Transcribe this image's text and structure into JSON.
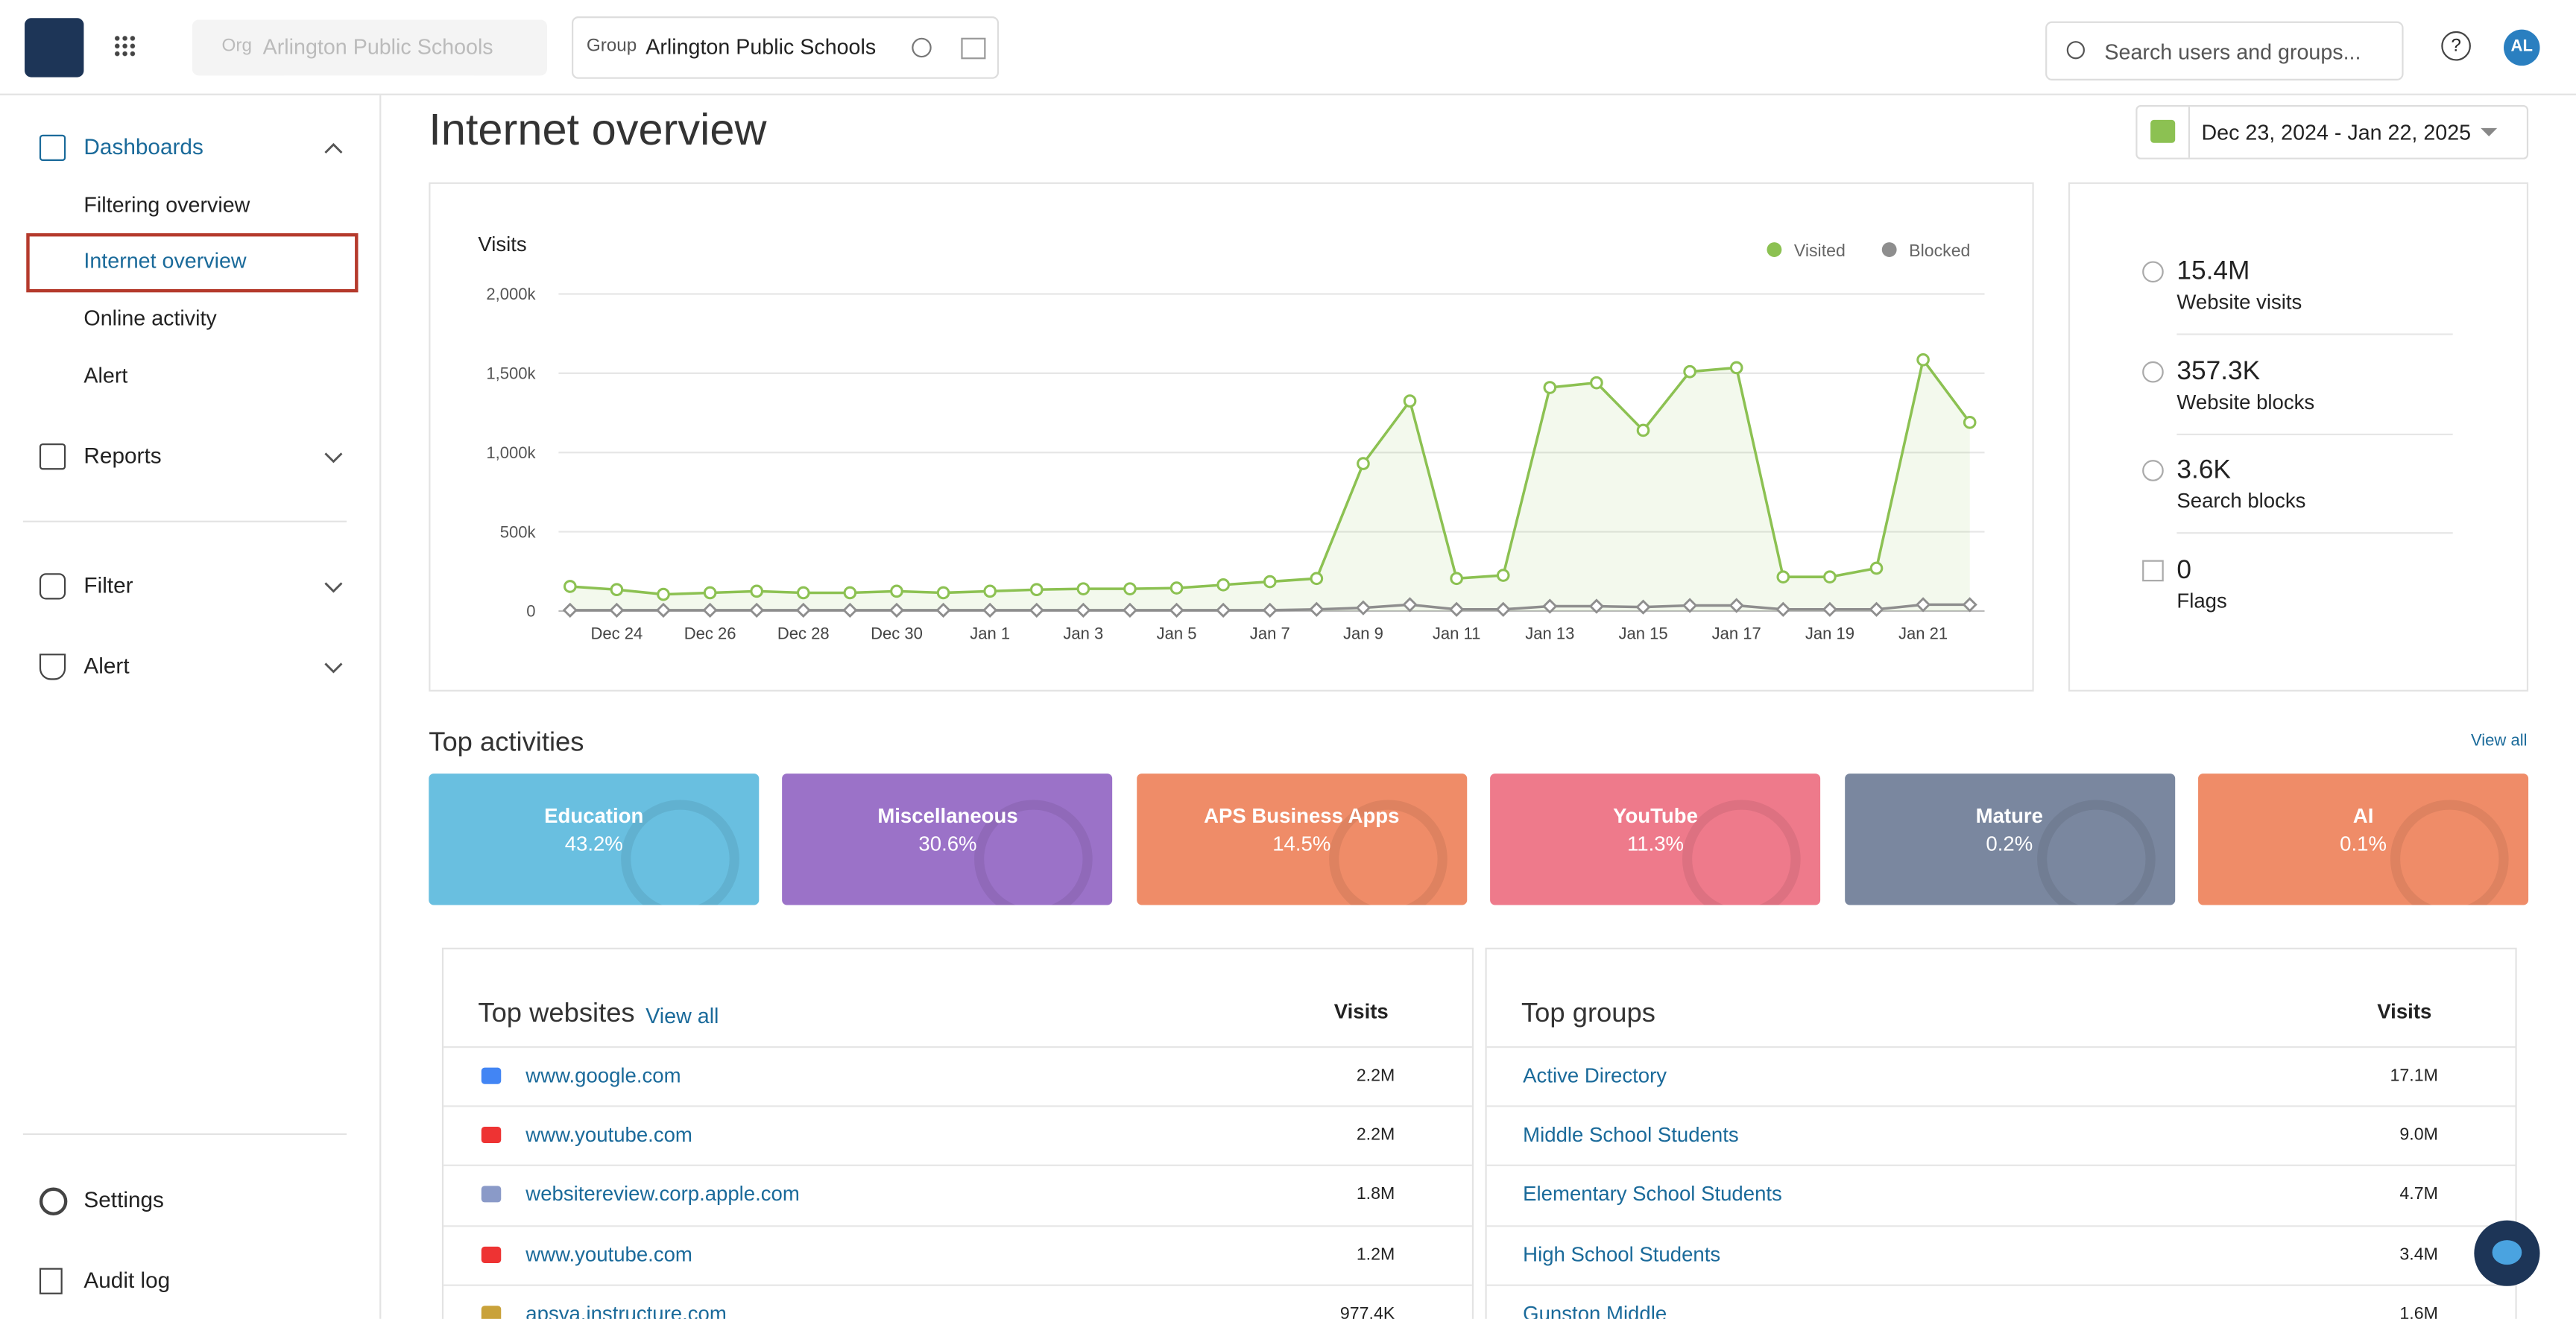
{
  "header": {
    "org_label": "Org",
    "org": "Arlington Public Schools",
    "group_label": "Group",
    "group": "Arlington Public Schools",
    "search_placeholder": "Search users and groups...",
    "help": "?",
    "avatar": "AL"
  },
  "nav": {
    "dashboards": "Dashboards",
    "dashboard_items": [
      "Filtering overview",
      "Internet overview",
      "Online activity",
      "Alert"
    ],
    "reports": "Reports",
    "filter": "Filter",
    "alert": "Alert",
    "settings": "Settings",
    "audit_log": "Audit log"
  },
  "page": {
    "title": "Internet overview",
    "date_range": "Dec 23, 2024 - Jan 22, 2025"
  },
  "chart_data": {
    "type": "line",
    "title": "Visits",
    "categories": [
      null,
      "Dec 24",
      null,
      "Dec 26",
      null,
      "Dec 28",
      null,
      "Dec 30",
      null,
      "Jan 1",
      null,
      "Jan 3",
      null,
      "Jan 5",
      null,
      "Jan 7",
      null,
      "Jan 9",
      null,
      "Jan 11",
      null,
      "Jan 13",
      null,
      "Jan 15",
      null,
      "Jan 17",
      null,
      "Jan 19",
      null,
      "Jan 21",
      null
    ],
    "series": [
      {
        "name": "Visited",
        "color": "#8cc152",
        "values": [
          155000,
          135000,
          105000,
          115000,
          125000,
          115000,
          115000,
          125000,
          115000,
          125000,
          135000,
          140000,
          140000,
          145000,
          165000,
          185000,
          205000,
          930000,
          1325000,
          205000,
          225000,
          1410000,
          1440000,
          1140000,
          1510000,
          1535000,
          215000,
          215000,
          270000,
          1585000,
          1190000
        ]
      },
      {
        "name": "Blocked",
        "color": "#8e8e8e",
        "values": [
          5000,
          5000,
          5000,
          5000,
          5000,
          5000,
          5000,
          5000,
          5000,
          5000,
          5000,
          5000,
          5000,
          5000,
          5000,
          5000,
          10000,
          20000,
          40000,
          10000,
          10000,
          30000,
          30000,
          25000,
          35000,
          35000,
          10000,
          10000,
          10000,
          40000,
          40000
        ]
      }
    ],
    "ylim": [
      0,
      2000000
    ],
    "yticks": [
      0,
      {
        "value": 500000,
        "label": "500k"
      },
      {
        "value": 1000000,
        "label": "1,000k"
      },
      {
        "value": 1500000,
        "label": "1,500k"
      },
      {
        "value": 2000000,
        "label": "2,000k"
      }
    ],
    "grid": true,
    "legend": "top-right"
  },
  "stats": [
    {
      "value": "15.4M",
      "label": "Website visits"
    },
    {
      "value": "357.3K",
      "label": "Website blocks"
    },
    {
      "value": "3.6K",
      "label": "Search blocks"
    },
    {
      "value": "0",
      "label": "Flags"
    }
  ],
  "top_activities": {
    "title": "Top activities",
    "view_all": "View all",
    "tiles": [
      {
        "name": "Education",
        "share": "43.2%"
      },
      {
        "name": "Miscellaneous",
        "share": "30.6%"
      },
      {
        "name": "APS Business Apps",
        "share": "14.5%"
      },
      {
        "name": "YouTube",
        "share": "11.3%"
      },
      {
        "name": "Mature",
        "share": "0.2%"
      },
      {
        "name": "AI",
        "share": "0.1%"
      }
    ]
  },
  "top_websites": {
    "title": "Top websites",
    "view_all": "View all",
    "column": "Visits",
    "rows": [
      [
        "www.google.com",
        "2.2M"
      ],
      [
        "www.youtube.com",
        "2.2M"
      ],
      [
        "websitereview.corp.apple.com",
        "1.8M"
      ],
      [
        "www.youtube.com",
        "1.2M"
      ],
      [
        "apsva.instructure.com",
        "977.4K"
      ]
    ]
  },
  "top_groups": {
    "title": "Top groups",
    "column": "Visits",
    "rows": [
      [
        "Active Directory",
        "17.1M"
      ],
      [
        "Middle School Students",
        "9.0M"
      ],
      [
        "Elementary School Students",
        "4.7M"
      ],
      [
        "High School Students",
        "3.4M"
      ],
      [
        "Gunston Middle",
        "1.6M"
      ]
    ]
  }
}
